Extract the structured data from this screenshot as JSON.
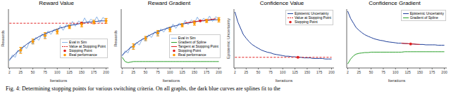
{
  "caption": "Fig. 4: Determining stopping points for various switching criteria. On all graphs, the dark blue curves are splines fit to the",
  "chart_data": [
    {
      "type": "line",
      "title": "Reward Value",
      "x_label": "Iterations",
      "y_label": "Rewards",
      "tick_labels": "x",
      "legend": "lower right",
      "xlim": [
        0,
        205
      ],
      "xticks": [
        2,
        25,
        50,
        75,
        100,
        125,
        150,
        175,
        200
      ],
      "ylim": [
        0,
        1
      ],
      "x": [
        2,
        8,
        14,
        19,
        25,
        31,
        37,
        44,
        50,
        56,
        62,
        69,
        75,
        81,
        87,
        94,
        100,
        106,
        112,
        119,
        125,
        131,
        137,
        144,
        150,
        156,
        162,
        169,
        175,
        181,
        187,
        194,
        200
      ],
      "series": [
        {
          "name": "Eval in Sim",
          "type": "line",
          "color": "#8ab4e8",
          "values": [
            0.12,
            0.22,
            0.18,
            0.3,
            0.26,
            0.38,
            0.33,
            0.45,
            0.4,
            0.52,
            0.47,
            0.58,
            0.5,
            0.63,
            0.57,
            0.66,
            0.6,
            0.72,
            0.64,
            0.74,
            0.68,
            0.79,
            0.71,
            0.8,
            0.74,
            0.85,
            0.76,
            0.83,
            0.78,
            0.87,
            0.77,
            0.86,
            0.8
          ]
        },
        {
          "type": "line",
          "color": "#1f3f99",
          "values": [
            0.14,
            0.19,
            0.24,
            0.28,
            0.32,
            0.36,
            0.4,
            0.44,
            0.47,
            0.5,
            0.53,
            0.56,
            0.58,
            0.6,
            0.62,
            0.64,
            0.66,
            0.68,
            0.69,
            0.71,
            0.72,
            0.73,
            0.74,
            0.75,
            0.76,
            0.77,
            0.78,
            0.78,
            0.79,
            0.79,
            0.8,
            0.8,
            0.8
          ]
        },
        {
          "name": "Value at Stopping Point",
          "type": "line",
          "line_style": "dashed",
          "color": "#e02020",
          "x": [
            2,
            200
          ],
          "values": [
            0.76,
            0.76
          ]
        },
        {
          "name": "Stopping Point",
          "type": "scatter",
          "marker": "o",
          "color": "#e02020",
          "x": [
            150
          ],
          "values": [
            0.76
          ]
        },
        {
          "name": "Real performance",
          "type": "scatter",
          "marker": "o",
          "color": "#ff9900",
          "x": [
            25,
            50,
            75,
            100,
            125,
            150,
            175,
            200
          ],
          "values": [
            0.3,
            0.45,
            0.55,
            0.62,
            0.7,
            0.74,
            0.78,
            0.8
          ],
          "error": [
            0.05,
            0.04,
            0.05,
            0.04,
            0.03,
            0.04,
            0.03,
            0.04
          ]
        }
      ]
    },
    {
      "type": "line",
      "title": "Reward Gradient",
      "x_label": "Iterations",
      "y_label": "Rewards",
      "tick_labels": "x",
      "legend": "lower right",
      "xlim": [
        0,
        205
      ],
      "xticks": [
        2,
        25,
        50,
        75,
        100,
        125,
        150,
        175,
        200
      ],
      "ylim": [
        -0.1,
        1
      ],
      "x": [
        2,
        8,
        14,
        19,
        25,
        31,
        37,
        44,
        50,
        56,
        62,
        69,
        75,
        81,
        87,
        94,
        100,
        106,
        112,
        119,
        125,
        131,
        137,
        144,
        150,
        156,
        162,
        169,
        175,
        181,
        187,
        194,
        200
      ],
      "series": [
        {
          "name": "Eval in Sim",
          "type": "line",
          "color": "#8ab4e8",
          "values": [
            0.12,
            0.22,
            0.18,
            0.3,
            0.26,
            0.38,
            0.33,
            0.45,
            0.4,
            0.52,
            0.47,
            0.58,
            0.5,
            0.63,
            0.57,
            0.66,
            0.6,
            0.72,
            0.64,
            0.74,
            0.68,
            0.79,
            0.71,
            0.8,
            0.74,
            0.85,
            0.76,
            0.83,
            0.78,
            0.87,
            0.77,
            0.86,
            0.8
          ]
        },
        {
          "type": "line",
          "color": "#1f3f99",
          "values": [
            0.14,
            0.19,
            0.24,
            0.28,
            0.32,
            0.36,
            0.4,
            0.44,
            0.47,
            0.5,
            0.53,
            0.56,
            0.58,
            0.6,
            0.62,
            0.64,
            0.66,
            0.68,
            0.69,
            0.71,
            0.72,
            0.73,
            0.74,
            0.75,
            0.76,
            0.77,
            0.78,
            0.78,
            0.79,
            0.79,
            0.8,
            0.8,
            0.8
          ]
        },
        {
          "name": "Gradient of Spline",
          "type": "line",
          "color": "#2ca02c",
          "values": [
            0.1,
            0.02,
            0.0,
            0.01,
            0.02,
            0.02,
            0.02,
            0.02,
            0.02,
            0.02,
            0.02,
            0.02,
            0.02,
            0.02,
            0.02,
            0.02,
            0.02,
            0.02,
            0.02,
            0.02,
            0.02,
            0.02,
            0.02,
            0.02,
            0.02,
            0.02,
            0.02,
            0.02,
            0.02,
            0.02,
            0.02,
            0.02,
            0.02
          ]
        },
        {
          "name": "Tangent at Stopping Point",
          "type": "line",
          "color": "#e02020",
          "x": [
            130,
            194
          ],
          "values": [
            0.74,
            0.82
          ]
        },
        {
          "name": "Stopping Point",
          "type": "scatter",
          "marker": "o",
          "color": "#e02020",
          "x": [
            162
          ],
          "values": [
            0.78
          ]
        },
        {
          "name": "Real performance",
          "type": "scatter",
          "marker": "o",
          "color": "#ff9900",
          "x": [
            25,
            50,
            75,
            100,
            125,
            150,
            175,
            200
          ],
          "values": [
            0.3,
            0.45,
            0.55,
            0.62,
            0.7,
            0.74,
            0.78,
            0.8
          ],
          "error": [
            0.05,
            0.04,
            0.05,
            0.04,
            0.03,
            0.04,
            0.03,
            0.04
          ]
        }
      ]
    },
    {
      "type": "line",
      "title": "Confidence Value",
      "x_label": "Iterations",
      "y_label": "Epistemic Uncertainty",
      "tick_labels": "x",
      "legend": "upper right",
      "xlim": [
        0,
        205
      ],
      "xticks": [
        2,
        25,
        50,
        75,
        100,
        125,
        150,
        175,
        200
      ],
      "ylim": [
        0,
        1.05
      ],
      "x": [
        2,
        8,
        14,
        19,
        25,
        31,
        37,
        44,
        50,
        56,
        62,
        69,
        75,
        81,
        87,
        94,
        100,
        106,
        112,
        119,
        125,
        131,
        137,
        144,
        150,
        156,
        162,
        169,
        175,
        181,
        187,
        194,
        200
      ],
      "series": [
        {
          "name": "Epistemic Uncertainty",
          "type": "line",
          "color": "#1f3f99",
          "values": [
            1.0,
            0.82,
            0.7,
            0.6,
            0.53,
            0.47,
            0.42,
            0.38,
            0.35,
            0.32,
            0.3,
            0.28,
            0.27,
            0.25,
            0.24,
            0.23,
            0.22,
            0.21,
            0.21,
            0.2,
            0.2,
            0.19,
            0.19,
            0.18,
            0.18,
            0.18,
            0.17,
            0.17,
            0.17,
            0.17,
            0.16,
            0.16,
            0.16
          ]
        },
        {
          "name": "Value at Stopping Point",
          "type": "line",
          "line_style": "dashed",
          "color": "#e02020",
          "x": [
            2,
            200
          ],
          "values": [
            0.19,
            0.19
          ]
        },
        {
          "name": "Stopping Point",
          "type": "scatter",
          "marker": "o",
          "color": "#e02020",
          "x": [
            131
          ],
          "values": [
            0.19
          ]
        }
      ]
    },
    {
      "type": "line",
      "title": "Confidence Gradient",
      "x_label": "Iterations",
      "tick_labels": "x",
      "legend": "upper right",
      "xlim": [
        0,
        205
      ],
      "xticks": [
        2,
        25,
        50,
        75,
        100,
        125,
        150,
        175,
        200
      ],
      "ylim": [
        -0.4,
        1.05
      ],
      "x": [
        2,
        8,
        14,
        19,
        25,
        31,
        37,
        44,
        50,
        56,
        62,
        69,
        75,
        81,
        87,
        94,
        100,
        106,
        112,
        119,
        125,
        131,
        137,
        144,
        150,
        156,
        162,
        169,
        175,
        181,
        187,
        194,
        200
      ],
      "series": [
        {
          "name": "Epistemic Uncertainty",
          "type": "line",
          "color": "#1f3f99",
          "values": [
            1.0,
            0.82,
            0.7,
            0.6,
            0.53,
            0.47,
            0.42,
            0.38,
            0.35,
            0.32,
            0.3,
            0.28,
            0.27,
            0.25,
            0.24,
            0.23,
            0.22,
            0.21,
            0.21,
            0.2,
            0.2,
            0.19,
            0.19,
            0.18,
            0.18,
            0.18,
            0.17,
            0.17,
            0.17,
            0.17,
            0.16,
            0.16,
            0.16
          ]
        },
        {
          "name": "Gradient of Spline",
          "type": "line",
          "color": "#2ca02c",
          "values": [
            -0.3,
            -0.18,
            -0.1,
            -0.06,
            -0.04,
            -0.03,
            -0.02,
            -0.02,
            -0.01,
            -0.01,
            -0.01,
            -0.01,
            -0.01,
            -0.01,
            -0.01,
            -0.01,
            -0.01,
            -0.01,
            -0.01,
            0.0,
            0.0,
            0.0,
            0.0,
            0.0,
            0.0,
            0.0,
            0.0,
            0.0,
            0.0,
            0.0,
            0.0,
            0.0,
            0.0
          ]
        },
        {
          "type": "line",
          "color": "#e02020",
          "x": [
            112,
            150
          ],
          "values": [
            0.21,
            0.18
          ]
        },
        {
          "type": "scatter",
          "marker": "o",
          "color": "#e02020",
          "x": [
            131
          ],
          "values": [
            0.19
          ]
        }
      ]
    }
  ]
}
